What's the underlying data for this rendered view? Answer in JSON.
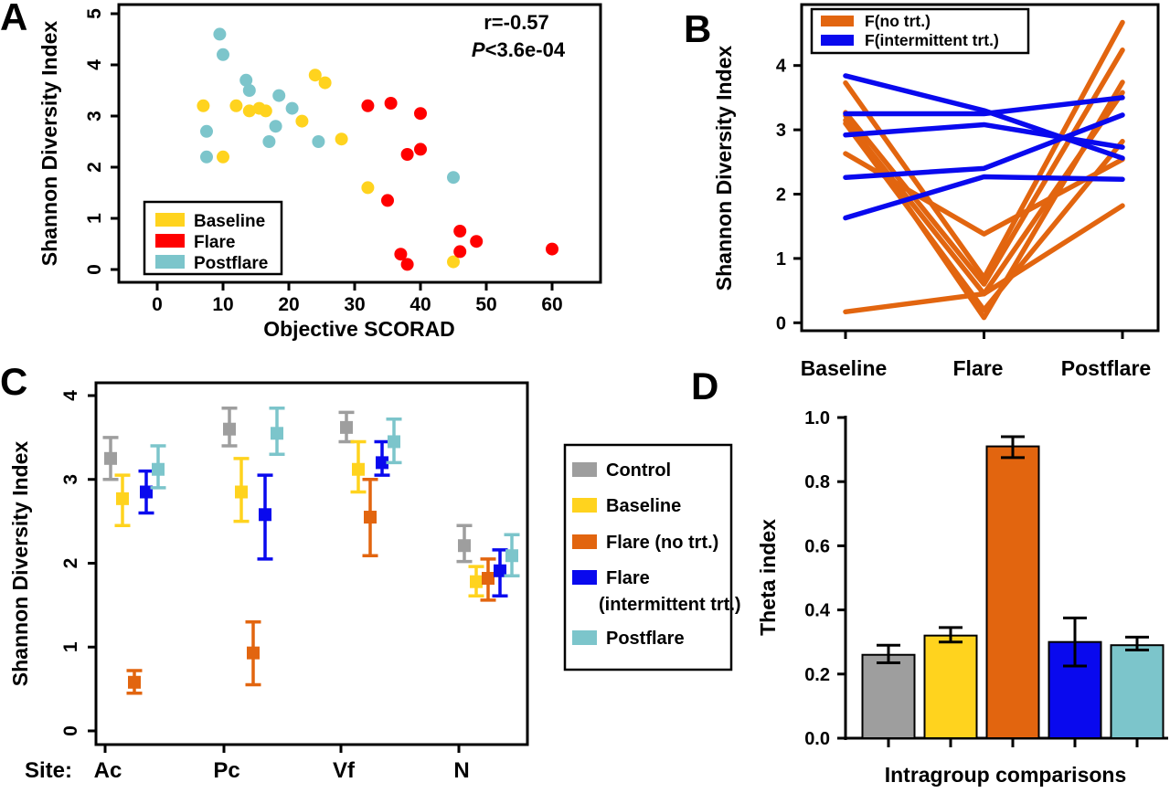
{
  "panel_labels": {
    "a": "A",
    "b": "B",
    "c": "C",
    "d": "D"
  },
  "colors": {
    "control_gray": "#9E9E9E",
    "baseline_yellow": "#FFD31E",
    "flare_red": "#FF0000",
    "flare_orange": "#E2650F",
    "flare_blue": "#0909EE",
    "postflare_teal": "#7CC5CB",
    "axis": "#000000"
  },
  "chart_data": [
    {
      "id": "A",
      "type": "scatter",
      "xlabel": "Objective SCORAD",
      "ylabel": "Shannon Diversity Index",
      "xticks": [
        0,
        10,
        20,
        30,
        40,
        50,
        60
      ],
      "yticks": [
        0,
        1,
        2,
        3,
        4,
        5
      ],
      "xlim": [
        0,
        60
      ],
      "ylim": [
        0,
        5
      ],
      "annotation": {
        "line1": "r=-0.57",
        "p_italic": "P",
        "p_rest": "<3.6e-04"
      },
      "legend": [
        {
          "label": "Baseline",
          "color": "baseline_yellow"
        },
        {
          "label": "Flare",
          "color": "flare_red"
        },
        {
          "label": "Postflare",
          "color": "postflare_teal"
        }
      ],
      "series": [
        {
          "name": "Baseline",
          "color": "baseline_yellow",
          "points": [
            [
              7,
              3.2
            ],
            [
              10,
              2.2
            ],
            [
              12,
              3.2
            ],
            [
              14,
              3.1
            ],
            [
              15.5,
              3.15
            ],
            [
              16.5,
              3.1
            ],
            [
              22,
              2.9
            ],
            [
              24,
              3.8
            ],
            [
              25.5,
              3.65
            ],
            [
              28,
              2.55
            ],
            [
              32,
              1.6
            ],
            [
              45,
              0.15
            ]
          ]
        },
        {
          "name": "Flare",
          "color": "flare_red",
          "points": [
            [
              32,
              3.2
            ],
            [
              35.5,
              3.25
            ],
            [
              40,
              3.05
            ],
            [
              38,
              2.25
            ],
            [
              40,
              2.35
            ],
            [
              35,
              1.35
            ],
            [
              37,
              0.3
            ],
            [
              38,
              0.1
            ],
            [
              46,
              0.75
            ],
            [
              48.5,
              0.55
            ],
            [
              46,
              0.35
            ],
            [
              60,
              0.4
            ]
          ]
        },
        {
          "name": "Postflare",
          "color": "postflare_teal",
          "points": [
            [
              7.5,
              2.7
            ],
            [
              7.5,
              2.2
            ],
            [
              9.5,
              4.6
            ],
            [
              10,
              4.2
            ],
            [
              13.5,
              3.7
            ],
            [
              14,
              3.5
            ],
            [
              17,
              2.5
            ],
            [
              18,
              2.8
            ],
            [
              18.5,
              3.4
            ],
            [
              20.5,
              3.15
            ],
            [
              24.5,
              2.5
            ],
            [
              45,
              1.8
            ]
          ]
        }
      ]
    },
    {
      "id": "B",
      "type": "line",
      "categories": [
        "Baseline",
        "Flare",
        "Postflare"
      ],
      "ylabel": "Shannon Diversity Index",
      "yticks": [
        0,
        1,
        2,
        3,
        4
      ],
      "ylim": [
        0,
        4.7
      ],
      "legend": [
        {
          "label": "F(no trt.)",
          "color": "flare_orange"
        },
        {
          "label": "F(intermittent trt.)",
          "color": "flare_blue"
        }
      ],
      "series": [
        {
          "name": "F(no trt.)",
          "color": "flare_orange",
          "lines": [
            [
              3.73,
              0.7,
              4.67
            ],
            [
              3.27,
              0.6,
              4.24
            ],
            [
              3.22,
              0.08,
              3.74
            ],
            [
              3.15,
              0.45,
              3.58
            ],
            [
              3.1,
              0.2,
              2.82
            ],
            [
              2.63,
              1.38,
              2.54
            ],
            [
              0.17,
              0.45,
              1.82
            ]
          ]
        },
        {
          "name": "F(intermittent trt.)",
          "color": "flare_blue",
          "lines": [
            [
              3.84,
              3.3,
              2.56
            ],
            [
              3.25,
              3.25,
              3.5
            ],
            [
              2.92,
              3.08,
              2.73
            ],
            [
              2.26,
              2.4,
              3.23
            ],
            [
              1.63,
              2.27,
              2.23
            ]
          ]
        }
      ]
    },
    {
      "id": "C",
      "type": "pointrange",
      "x_prefix": "Site:",
      "categories": [
        "Ac",
        "Pc",
        "Vf",
        "N"
      ],
      "ylabel": "Shannon Diversity Index",
      "yticks": [
        0,
        1,
        2,
        3,
        4
      ],
      "ylim": [
        0,
        4.2
      ],
      "legend": [
        {
          "lines": [
            "Control"
          ],
          "color": "control_gray"
        },
        {
          "lines": [
            "Baseline"
          ],
          "color": "baseline_yellow"
        },
        {
          "lines": [
            "Flare (no trt.)"
          ],
          "color": "flare_orange"
        },
        {
          "lines": [
            "Flare",
            "(intermittent trt.)"
          ],
          "color": "flare_blue"
        },
        {
          "lines": [
            "Postflare"
          ],
          "color": "postflare_teal"
        }
      ],
      "groups": [
        {
          "name": "Control",
          "color": "control_gray",
          "values": [
            3.25,
            3.6,
            3.62,
            2.21
          ],
          "lo": [
            3.0,
            3.4,
            3.45,
            2.02
          ],
          "hi": [
            3.5,
            3.85,
            3.8,
            2.45
          ]
        },
        {
          "name": "Baseline",
          "color": "baseline_yellow",
          "values": [
            2.77,
            2.85,
            3.12,
            1.78
          ],
          "lo": [
            2.45,
            2.5,
            2.85,
            1.61
          ],
          "hi": [
            3.05,
            3.25,
            3.45,
            1.96
          ]
        },
        {
          "name": "Flare (no trt.)",
          "color": "flare_orange",
          "values": [
            0.58,
            0.93,
            2.55,
            1.82
          ],
          "lo": [
            0.45,
            0.55,
            2.09,
            1.56
          ],
          "hi": [
            0.72,
            1.3,
            3.0,
            2.05
          ]
        },
        {
          "name": "Flare (intermittent trt.)",
          "color": "flare_blue",
          "values": [
            2.85,
            2.58,
            3.2,
            1.91
          ],
          "lo": [
            2.6,
            2.05,
            3.05,
            1.61
          ],
          "hi": [
            3.1,
            3.05,
            3.45,
            2.16
          ]
        },
        {
          "name": "Postflare",
          "color": "postflare_teal",
          "values": [
            3.12,
            3.55,
            3.45,
            2.09
          ],
          "lo": [
            2.9,
            3.3,
            3.2,
            1.85
          ],
          "hi": [
            3.4,
            3.85,
            3.72,
            2.34
          ]
        }
      ]
    },
    {
      "id": "D",
      "type": "bar",
      "xlabel": "Intragroup comparisons",
      "ylabel": "Theta index",
      "yticks": [
        0,
        0.2,
        0.4,
        0.6,
        0.8,
        1.0
      ],
      "ylim": [
        0,
        1
      ],
      "bars": [
        {
          "name": "Control",
          "color": "control_gray",
          "value": 0.26,
          "lo": 0.235,
          "hi": 0.29
        },
        {
          "name": "Baseline",
          "color": "baseline_yellow",
          "value": 0.32,
          "lo": 0.3,
          "hi": 0.345
        },
        {
          "name": "Flare (no trt.)",
          "color": "flare_orange",
          "value": 0.91,
          "lo": 0.875,
          "hi": 0.94
        },
        {
          "name": "Flare (intermittent trt.)",
          "color": "flare_blue",
          "value": 0.3,
          "lo": 0.225,
          "hi": 0.375
        },
        {
          "name": "Postflare",
          "color": "postflare_teal",
          "value": 0.29,
          "lo": 0.275,
          "hi": 0.315
        }
      ]
    }
  ]
}
